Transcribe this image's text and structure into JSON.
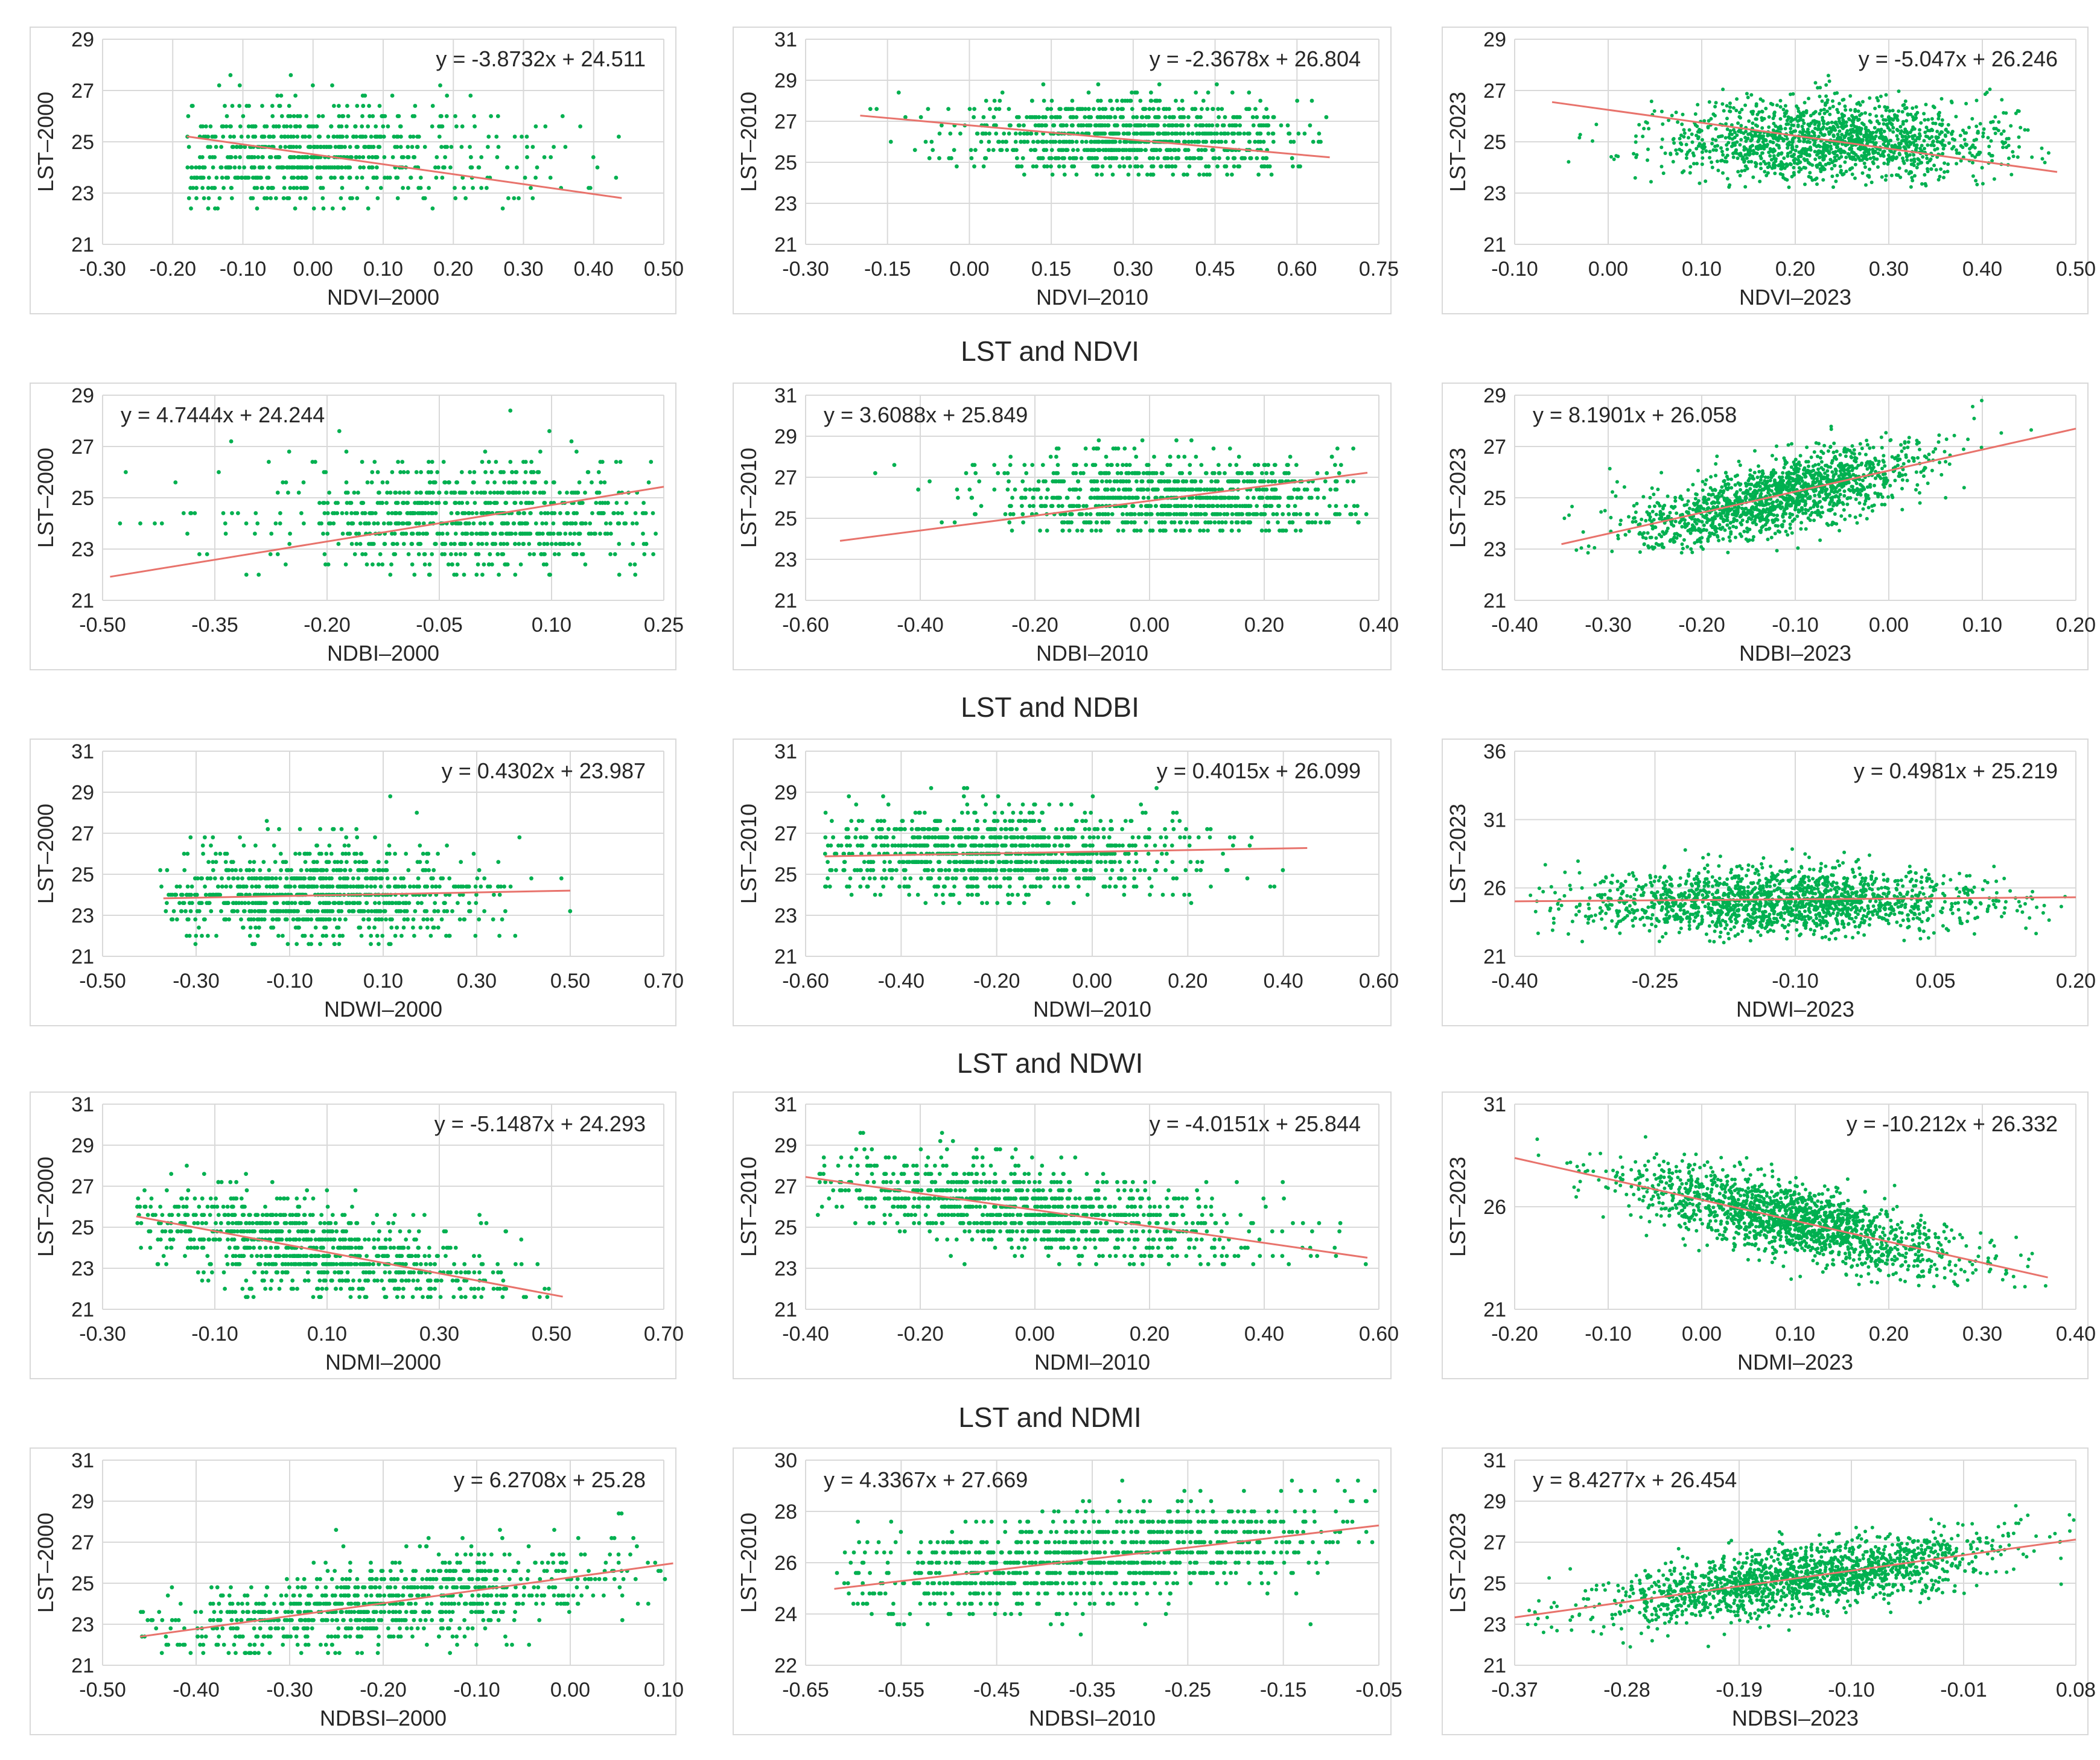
{
  "figure": {
    "row_titles": [
      "LST and NDVI",
      "LST and NDBI",
      "LST and NDWI",
      "LST and NDMI"
    ],
    "colors": {
      "points": "#00b050",
      "trend": "#e8736c",
      "grid": "#d9d9d9",
      "axis": "#bfbfbf",
      "text": "#262626"
    }
  },
  "chart_data": [
    {
      "type": "scatter",
      "id": "ndvi2000",
      "title": "",
      "xlabel": "NDVI–2000",
      "ylabel": "LST–2000",
      "equation": "y = -3.8732x + 24.511",
      "slope": -3.8732,
      "intercept": 24.511,
      "xlim": [
        -0.3,
        0.5
      ],
      "ylim": [
        21,
        29
      ],
      "xticks": [
        -0.3,
        -0.2,
        -0.1,
        0.0,
        0.1,
        0.2,
        0.3,
        0.4,
        0.5
      ],
      "yticks": [
        21,
        23,
        25,
        27,
        29
      ],
      "xtick_labels": [
        "-0.30",
        "-0.20",
        "-0.10",
        "0.00",
        "0.10",
        "0.20",
        "0.30",
        "0.40",
        "0.50"
      ],
      "ytick_labels": [
        "21",
        "23",
        "25",
        "27",
        "29"
      ],
      "cloud": {
        "xmin": -0.18,
        "xmax": 0.44,
        "ymin": 22.4,
        "ymax": 28.8,
        "peak": -0.02,
        "spread": 0.13,
        "yc": 24.5,
        "ysd": 1.1,
        "quantized": true,
        "n": 700
      },
      "trend_range": [
        -0.18,
        0.44
      ],
      "eq_pos": "top-right"
    },
    {
      "type": "scatter",
      "id": "ndvi2010",
      "title": "",
      "xlabel": "NDVI–2010",
      "ylabel": "LST–2010",
      "equation": "y = -2.3678x + 26.804",
      "slope": -2.3678,
      "intercept": 26.804,
      "xlim": [
        -0.3,
        0.75
      ],
      "ylim": [
        21,
        31
      ],
      "xticks": [
        -0.3,
        -0.15,
        0.0,
        0.15,
        0.3,
        0.45,
        0.6,
        0.75
      ],
      "yticks": [
        21,
        23,
        25,
        27,
        29,
        31
      ],
      "xtick_labels": [
        "-0.30",
        "-0.15",
        "0.00",
        "0.15",
        "0.30",
        "0.45",
        "0.60",
        "0.75"
      ],
      "ytick_labels": [
        "21",
        "23",
        "25",
        "27",
        "29",
        "31"
      ],
      "cloud": {
        "xmin": -0.2,
        "xmax": 0.66,
        "ymin": 24.2,
        "ymax": 28.8,
        "peak": 0.3,
        "spread": 0.16,
        "yc": 26.2,
        "ysd": 1.0,
        "quantized": true,
        "n": 900
      },
      "trend_range": [
        -0.2,
        0.66
      ],
      "eq_pos": "top-right"
    },
    {
      "type": "scatter",
      "id": "ndvi2023",
      "title": "",
      "xlabel": "NDVI–2023",
      "ylabel": "LST–2023",
      "equation": "y = -5.047x + 26.246",
      "slope": -5.047,
      "intercept": 26.246,
      "xlim": [
        -0.1,
        0.5
      ],
      "ylim": [
        21,
        29
      ],
      "xticks": [
        -0.1,
        0.0,
        0.1,
        0.2,
        0.3,
        0.4,
        0.5
      ],
      "yticks": [
        21,
        23,
        25,
        27,
        29
      ],
      "xtick_labels": [
        "-0.10",
        "0.00",
        "0.10",
        "0.20",
        "0.30",
        "0.40",
        "0.50"
      ],
      "ytick_labels": [
        "21",
        "23",
        "25",
        "27",
        "29"
      ],
      "cloud": {
        "xmin": -0.06,
        "xmax": 0.48,
        "ymin": 23.2,
        "ymax": 28.8,
        "peak": 0.24,
        "spread": 0.09,
        "yc": 25.0,
        "ysd": 0.8,
        "quantized": false,
        "n": 1500
      },
      "trend_range": [
        -0.06,
        0.48
      ],
      "eq_pos": "top-right"
    },
    {
      "type": "scatter",
      "id": "ndbi2000",
      "title": "",
      "xlabel": "NDBI–2000",
      "ylabel": "LST–2000",
      "equation": "y = 4.7444x + 24.244",
      "slope": 4.7444,
      "intercept": 24.244,
      "xlim": [
        -0.5,
        0.25
      ],
      "ylim": [
        21,
        29
      ],
      "xticks": [
        -0.5,
        -0.35,
        -0.2,
        -0.05,
        0.1,
        0.25
      ],
      "yticks": [
        21,
        23,
        25,
        27,
        29
      ],
      "xtick_labels": [
        "-0.50",
        "-0.35",
        "-0.20",
        "-0.05",
        "0.10",
        "0.25"
      ],
      "ytick_labels": [
        "21",
        "23",
        "25",
        "27",
        "29"
      ],
      "cloud": {
        "xmin": -0.48,
        "xmax": 0.24,
        "ymin": 21.8,
        "ymax": 28.8,
        "peak": 0.0,
        "spread": 0.14,
        "yc": 24.1,
        "ysd": 1.1,
        "quantized": true,
        "n": 800
      },
      "trend_range": [
        -0.49,
        0.25
      ],
      "eq_pos": "top-left"
    },
    {
      "type": "scatter",
      "id": "ndbi2010",
      "title": "",
      "xlabel": "NDBI–2010",
      "ylabel": "LST–2010",
      "equation": "y = 3.6088x + 25.849",
      "slope": 3.6088,
      "intercept": 25.849,
      "xlim": [
        -0.6,
        0.4
      ],
      "ylim": [
        21,
        31
      ],
      "xticks": [
        -0.6,
        -0.4,
        -0.2,
        0.0,
        0.2,
        0.4
      ],
      "yticks": [
        21,
        23,
        25,
        27,
        29,
        31
      ],
      "xtick_labels": [
        "-0.60",
        "-0.40",
        "-0.20",
        "0.00",
        "0.20",
        "0.40"
      ],
      "ytick_labels": [
        "21",
        "23",
        "25",
        "27",
        "29",
        "31"
      ],
      "cloud": {
        "xmin": -0.54,
        "xmax": 0.38,
        "ymin": 24.2,
        "ymax": 29.2,
        "peak": 0.05,
        "spread": 0.16,
        "yc": 26.0,
        "ysd": 1.0,
        "quantized": true,
        "n": 900
      },
      "trend_range": [
        -0.54,
        0.38
      ],
      "eq_pos": "top-left"
    },
    {
      "type": "scatter",
      "id": "ndbi2023",
      "title": "",
      "xlabel": "NDBI–2023",
      "ylabel": "LST–2023",
      "equation": "y = 8.1901x + 26.058",
      "slope": 8.1901,
      "intercept": 26.058,
      "xlim": [
        -0.4,
        0.2
      ],
      "ylim": [
        21,
        29
      ],
      "xticks": [
        -0.4,
        -0.3,
        -0.2,
        -0.1,
        0.0,
        0.1,
        0.2
      ],
      "yticks": [
        21,
        23,
        25,
        27,
        29
      ],
      "xtick_labels": [
        "-0.40",
        "-0.30",
        "-0.20",
        "-0.10",
        "0.00",
        "0.10",
        "0.20"
      ],
      "ytick_labels": [
        "21",
        "23",
        "25",
        "27",
        "29"
      ],
      "cloud": {
        "xmin": -0.35,
        "xmax": 0.2,
        "ymin": 22.8,
        "ymax": 28.8,
        "peak": -0.12,
        "spread": 0.08,
        "yc": null,
        "ysd": 0.7,
        "quantized": false,
        "n": 1500
      },
      "trend_range": [
        -0.35,
        0.2
      ],
      "eq_pos": "top-left"
    },
    {
      "type": "scatter",
      "id": "ndwi2000",
      "title": "",
      "xlabel": "NDWI–2000",
      "ylabel": "LST–2000",
      "equation": "y = 0.4302x + 23.987",
      "slope": 0.4302,
      "intercept": 23.987,
      "xlim": [
        -0.5,
        0.7
      ],
      "ylim": [
        21,
        31
      ],
      "xticks": [
        -0.5,
        -0.3,
        -0.1,
        0.1,
        0.3,
        0.5,
        0.7
      ],
      "yticks": [
        21,
        23,
        25,
        27,
        29,
        31
      ],
      "xtick_labels": [
        "-0.50",
        "-0.30",
        "-0.10",
        "0.10",
        "0.30",
        "0.50",
        "0.70"
      ],
      "ytick_labels": [
        "21",
        "23",
        "25",
        "27",
        "29",
        "31"
      ],
      "cloud": {
        "xmin": -0.38,
        "xmax": 0.5,
        "ymin": 21.4,
        "ymax": 28.8,
        "peak": -0.05,
        "spread": 0.18,
        "yc": 24.0,
        "ysd": 1.2,
        "quantized": true,
        "n": 900
      },
      "trend_range": [
        -0.37,
        0.5
      ],
      "eq_pos": "top-right"
    },
    {
      "type": "scatter",
      "id": "ndwi2010",
      "title": "",
      "xlabel": "NDWI–2010",
      "ylabel": "LST–2010",
      "equation": "y = 0.4015x + 26.099",
      "slope": 0.4015,
      "intercept": 26.099,
      "xlim": [
        -0.6,
        0.6
      ],
      "ylim": [
        21,
        31
      ],
      "xticks": [
        -0.6,
        -0.4,
        -0.2,
        0.0,
        0.2,
        0.4,
        0.6
      ],
      "yticks": [
        21,
        23,
        25,
        27,
        29,
        31
      ],
      "xtick_labels": [
        "-0.60",
        "-0.40",
        "-0.20",
        "0.00",
        "0.20",
        "0.40",
        "0.60"
      ],
      "ytick_labels": [
        "21",
        "23",
        "25",
        "27",
        "29",
        "31"
      ],
      "cloud": {
        "xmin": -0.56,
        "xmax": 0.44,
        "ymin": 23.4,
        "ymax": 29.6,
        "peak": -0.2,
        "spread": 0.2,
        "yc": 26.0,
        "ysd": 1.1,
        "quantized": true,
        "n": 1000
      },
      "trend_range": [
        -0.56,
        0.45
      ],
      "eq_pos": "top-right"
    },
    {
      "type": "scatter",
      "id": "ndwi2023",
      "title": "",
      "xlabel": "NDWI–2023",
      "ylabel": "LST–2023",
      "equation": "y = 0.4981x + 25.219",
      "slope": 0.4981,
      "intercept": 25.219,
      "xlim": [
        -0.4,
        0.2
      ],
      "ylim": [
        21,
        36
      ],
      "xticks": [
        -0.4,
        -0.25,
        -0.1,
        0.05,
        0.2
      ],
      "yticks": [
        21,
        26,
        31,
        36
      ],
      "xtick_labels": [
        "-0.40",
        "-0.25",
        "-0.10",
        "0.05",
        "0.20"
      ],
      "ytick_labels": [
        "21",
        "26",
        "31",
        "36"
      ],
      "cloud": {
        "xmin": -0.39,
        "xmax": 0.19,
        "ymin": 22.0,
        "ymax": 30.8,
        "peak": -0.12,
        "spread": 0.11,
        "yc": 25.0,
        "ysd": 1.2,
        "quantized": false,
        "n": 1600
      },
      "trend_range": [
        -0.4,
        0.2
      ],
      "eq_pos": "top-right"
    },
    {
      "type": "scatter",
      "id": "ndmi2000",
      "title": "",
      "xlabel": "NDMI–2000",
      "ylabel": "LST–2000",
      "equation": "y = -5.1487x + 24.293",
      "slope": -5.1487,
      "intercept": 24.293,
      "xlim": [
        -0.3,
        0.7
      ],
      "ylim": [
        21,
        31
      ],
      "xticks": [
        -0.3,
        -0.1,
        0.1,
        0.3,
        0.5,
        0.7
      ],
      "yticks": [
        21,
        23,
        25,
        27,
        29,
        31
      ],
      "xtick_labels": [
        "-0.30",
        "-0.10",
        "0.10",
        "0.30",
        "0.50",
        "0.70"
      ],
      "ytick_labels": [
        "21",
        "23",
        "25",
        "27",
        "29",
        "31"
      ],
      "cloud": {
        "xmin": -0.24,
        "xmax": 0.5,
        "ymin": 21.4,
        "ymax": 28.8,
        "peak": 0.05,
        "spread": 0.18,
        "yc": null,
        "ysd": 1.1,
        "quantized": true,
        "n": 900
      },
      "trend_range": [
        -0.24,
        0.52
      ],
      "eq_pos": "top-right"
    },
    {
      "type": "scatter",
      "id": "ndmi2010",
      "title": "",
      "xlabel": "NDMI–2010",
      "ylabel": "LST–2010",
      "equation": "y = -4.0151x + 25.844",
      "slope": -4.0151,
      "intercept": 25.844,
      "xlim": [
        -0.4,
        0.6
      ],
      "ylim": [
        21,
        31
      ],
      "xticks": [
        -0.4,
        -0.2,
        0.0,
        0.2,
        0.4,
        0.6
      ],
      "yticks": [
        21,
        23,
        25,
        27,
        29,
        31
      ],
      "xtick_labels": [
        "-0.40",
        "-0.20",
        "0.00",
        "0.20",
        "0.40",
        "0.60"
      ],
      "ytick_labels": [
        "21",
        "23",
        "25",
        "27",
        "29",
        "31"
      ],
      "cloud": {
        "xmin": -0.38,
        "xmax": 0.58,
        "ymin": 23.2,
        "ymax": 29.6,
        "peak": 0.0,
        "spread": 0.2,
        "yc": null,
        "ysd": 1.1,
        "quantized": true,
        "n": 1000
      },
      "trend_range": [
        -0.4,
        0.58
      ],
      "eq_pos": "top-right"
    },
    {
      "type": "scatter",
      "id": "ndmi2023",
      "title": "",
      "xlabel": "NDMI–2023",
      "ylabel": "LST–2023",
      "equation": "y = -10.212x + 26.332",
      "slope": -10.212,
      "intercept": 26.332,
      "xlim": [
        -0.2,
        0.4
      ],
      "ylim": [
        21,
        31
      ],
      "xticks": [
        -0.2,
        -0.1,
        0.0,
        0.1,
        0.2,
        0.3,
        0.4
      ],
      "yticks": [
        21,
        26,
        31
      ],
      "xtick_labels": [
        "-0.20",
        "-0.10",
        "0.00",
        "0.10",
        "0.20",
        "0.30",
        "0.40"
      ],
      "ytick_labels": [
        "21",
        "26",
        "31"
      ],
      "cloud": {
        "xmin": -0.2,
        "xmax": 0.37,
        "ymin": 22.0,
        "ymax": 31.0,
        "peak": 0.1,
        "spread": 0.09,
        "yc": null,
        "ysd": 0.9,
        "quantized": false,
        "n": 1600
      },
      "trend_range": [
        -0.2,
        0.37
      ],
      "eq_pos": "top-right"
    },
    {
      "type": "scatter",
      "id": "ndbsi2000",
      "title": "",
      "xlabel": "NDBSI–2000",
      "ylabel": "LST–2000",
      "equation": "y = 6.2708x + 25.28",
      "slope": 6.2708,
      "intercept": 25.28,
      "xlim": [
        -0.5,
        0.1
      ],
      "ylim": [
        21,
        31
      ],
      "xticks": [
        -0.5,
        -0.4,
        -0.3,
        -0.2,
        -0.1,
        0.0,
        0.1
      ],
      "yticks": [
        21,
        23,
        25,
        27,
        29,
        31
      ],
      "xtick_labels": [
        "-0.50",
        "-0.40",
        "-0.30",
        "-0.20",
        "-0.10",
        "0.00",
        "0.10"
      ],
      "ytick_labels": [
        "21",
        "23",
        "25",
        "27",
        "29",
        "31"
      ],
      "cloud": {
        "xmin": -0.46,
        "xmax": 0.11,
        "ymin": 21.6,
        "ymax": 28.8,
        "peak": -0.2,
        "spread": 0.13,
        "yc": null,
        "ysd": 1.0,
        "quantized": true,
        "n": 900
      },
      "trend_range": [
        -0.46,
        0.11
      ],
      "eq_pos": "top-right"
    },
    {
      "type": "scatter",
      "id": "ndbsi2010",
      "title": "",
      "xlabel": "NDBSI–2010",
      "ylabel": "LST–2010",
      "equation": "y = 4.3367x + 27.669",
      "slope": 4.3367,
      "intercept": 27.669,
      "xlim": [
        -0.65,
        -0.05
      ],
      "ylim": [
        22,
        30
      ],
      "xticks": [
        -0.65,
        -0.55,
        -0.45,
        -0.35,
        -0.25,
        -0.15,
        -0.05
      ],
      "yticks": [
        22,
        24,
        26,
        28,
        30
      ],
      "xtick_labels": [
        "-0.65",
        "-0.55",
        "-0.45",
        "-0.35",
        "-0.25",
        "-0.15",
        "-0.05"
      ],
      "ytick_labels": [
        "22",
        "24",
        "26",
        "28",
        "30"
      ],
      "cloud": {
        "xmin": -0.62,
        "xmax": -0.05,
        "ymin": 23.0,
        "ymax": 29.6,
        "peak": -0.35,
        "spread": 0.13,
        "yc": null,
        "ysd": 0.9,
        "quantized": true,
        "n": 1000
      },
      "trend_range": [
        -0.62,
        -0.05
      ],
      "eq_pos": "top-left"
    },
    {
      "type": "scatter",
      "id": "ndbsi2023",
      "title": "",
      "xlabel": "NDBSI–2023",
      "ylabel": "LST–2023",
      "equation": "y = 8.4277x + 26.454",
      "slope": 8.4277,
      "intercept": 26.454,
      "xlim": [
        -0.37,
        0.08
      ],
      "ylim": [
        21,
        31
      ],
      "xticks": [
        -0.37,
        -0.28,
        -0.19,
        -0.1,
        -0.01,
        0.08
      ],
      "yticks": [
        21,
        23,
        25,
        27,
        29,
        31
      ],
      "xtick_labels": [
        "-0.37",
        "-0.28",
        "-0.19",
        "-0.10",
        "-0.01",
        "0.08"
      ],
      "ytick_labels": [
        "21",
        "23",
        "25",
        "27",
        "29",
        "31"
      ],
      "cloud": {
        "xmin": -0.36,
        "xmax": 0.08,
        "ymin": 21.8,
        "ymax": 30.8,
        "peak": -0.14,
        "spread": 0.08,
        "yc": null,
        "ysd": 0.8,
        "quantized": false,
        "n": 1600
      },
      "trend_range": [
        -0.37,
        0.08
      ],
      "eq_pos": "top-left"
    }
  ]
}
